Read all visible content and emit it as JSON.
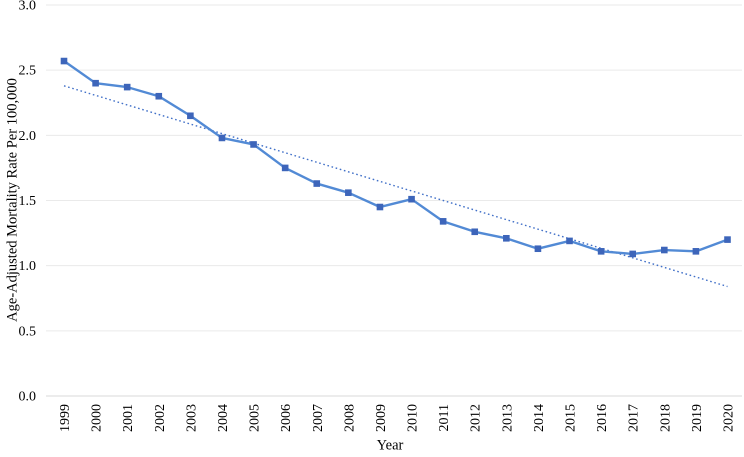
{
  "chart_data": {
    "type": "line",
    "title": "",
    "xlabel": "Year",
    "ylabel": "Age-Adjusted Mortality Rate Per 100,000",
    "x": [
      "1999",
      "2000",
      "2001",
      "2002",
      "2003",
      "2004",
      "2005",
      "2006",
      "2007",
      "2008",
      "2009",
      "2010",
      "2011",
      "2012",
      "2013",
      "2014",
      "2015",
      "2016",
      "2017",
      "2018",
      "2019",
      "2020"
    ],
    "series": [
      {
        "name": "age-adjusted-mortality-rate",
        "marker": "square",
        "line_color": "#528ad5",
        "marker_color": "#3d65ba",
        "values": [
          2.57,
          2.4,
          2.37,
          2.3,
          2.15,
          1.98,
          1.93,
          1.75,
          1.63,
          1.56,
          1.45,
          1.51,
          1.34,
          1.26,
          1.21,
          1.13,
          1.19,
          1.11,
          1.09,
          1.12,
          1.11,
          1.2
        ]
      }
    ],
    "trendline": {
      "type": "linear",
      "style": "dotted",
      "color": "#4170c8",
      "start_value": 2.38,
      "end_value": 0.84
    },
    "ylim": [
      0,
      3
    ],
    "yticks": [
      {
        "value": 0.0,
        "label": "0.0"
      },
      {
        "value": 0.5,
        "label": "0.5"
      },
      {
        "value": 1.0,
        "label": "1.0"
      },
      {
        "value": 1.5,
        "label": "1.5"
      },
      {
        "value": 2.0,
        "label": "2.0"
      },
      {
        "value": 2.5,
        "label": "2.5"
      },
      {
        "value": 3.0,
        "label": "3.0"
      }
    ],
    "grid": true,
    "gridline_color": "#eaeaea",
    "axis_line_color": "#d9d9d9",
    "text_color": "#000000",
    "legend": "none"
  }
}
